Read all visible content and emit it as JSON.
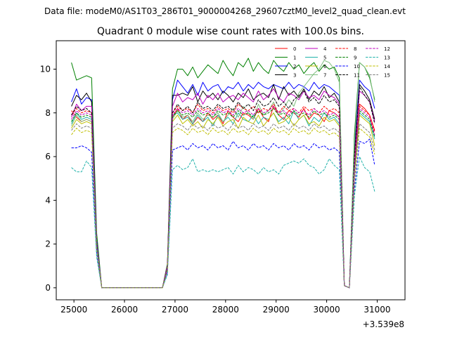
{
  "header": {
    "datafile": "Data file: modeM0/AS1T03_286T01_9000004268_29607cztM0_level2_quad_clean.evt"
  },
  "chart_data": {
    "type": "line",
    "title": "Quadrant 0 module wise count rates with 100.0s bins.",
    "xlabel": "",
    "ylabel": "",
    "x_offset_label": "+3.539e8",
    "x_offset": 353900000,
    "xlim": [
      24650,
      31550
    ],
    "ylim": [
      -0.55,
      11.3
    ],
    "xticks": [
      25000,
      26000,
      27000,
      28000,
      29000,
      30000,
      31000
    ],
    "xtick_labels": [
      "25000",
      "26000",
      "27000",
      "28000",
      "29000",
      "30000",
      "31000"
    ],
    "yticks": [
      0,
      2,
      4,
      6,
      8,
      10
    ],
    "ytick_labels": [
      "0",
      "2",
      "4",
      "6",
      "8",
      "10"
    ],
    "legend_position": "top-right",
    "legend_columns": 4,
    "bin_width": 100,
    "x_start": 24950,
    "series": [
      {
        "name": "0",
        "color": "#ff0000",
        "dash": false,
        "values": [
          8.1,
          7.8,
          7.6,
          7.7,
          7.6,
          2.0,
          0.0,
          0.0,
          0.0,
          0.0,
          0.0,
          0.0,
          0.0,
          0.0,
          0.0,
          0.0,
          0.0,
          0.0,
          0.0,
          0.9,
          7.8,
          8.2,
          7.7,
          7.9,
          7.5,
          7.8,
          7.6,
          8.0,
          7.7,
          7.9,
          7.5,
          8.1,
          7.8,
          7.6,
          8.0,
          7.9,
          7.7,
          8.2,
          7.8,
          7.6,
          8.3,
          7.9,
          7.7,
          8.1,
          8.0,
          7.8,
          8.2,
          7.7,
          8.0,
          7.9,
          7.6,
          8.1,
          8.0,
          7.8,
          0.1,
          0.0,
          5.5,
          8.4,
          8.2,
          7.9,
          7.2
        ]
      },
      {
        "name": "1",
        "color": "#008000",
        "dash": false,
        "values": [
          10.3,
          9.5,
          9.6,
          9.7,
          9.6,
          2.5,
          0.0,
          0.0,
          0.0,
          0.0,
          0.0,
          0.0,
          0.0,
          0.0,
          0.0,
          0.0,
          0.0,
          0.0,
          0.0,
          1.1,
          9.1,
          10.0,
          10.0,
          9.7,
          10.1,
          9.6,
          9.9,
          10.2,
          10.0,
          9.8,
          10.4,
          10.0,
          9.7,
          10.3,
          10.1,
          10.5,
          9.9,
          10.3,
          10.0,
          9.8,
          10.4,
          10.1,
          9.9,
          10.3,
          10.0,
          10.2,
          9.8,
          10.1,
          10.3,
          9.9,
          10.2,
          10.0,
          10.1,
          9.6,
          0.1,
          0.0,
          7.0,
          10.3,
          10.1,
          9.6,
          8.6
        ]
      },
      {
        "name": "2",
        "color": "#0000ff",
        "dash": false,
        "values": [
          8.5,
          9.1,
          8.4,
          8.7,
          8.6,
          2.2,
          0.0,
          0.0,
          0.0,
          0.0,
          0.0,
          0.0,
          0.0,
          0.0,
          0.0,
          0.0,
          0.0,
          0.0,
          0.0,
          1.0,
          8.6,
          9.5,
          9.2,
          8.9,
          9.3,
          8.8,
          9.4,
          9.0,
          9.2,
          9.3,
          8.9,
          9.2,
          9.1,
          9.4,
          9.0,
          9.3,
          9.1,
          9.4,
          9.2,
          9.1,
          9.3,
          9.2,
          9.1,
          9.4,
          9.1,
          9.3,
          9.2,
          9.0,
          9.4,
          9.1,
          9.3,
          9.2,
          9.0,
          8.8,
          0.1,
          0.0,
          6.3,
          9.5,
          9.2,
          9.0,
          8.2
        ]
      },
      {
        "name": "3",
        "color": "#000000",
        "dash": false,
        "values": [
          8.3,
          8.8,
          8.6,
          8.9,
          8.5,
          2.1,
          0.0,
          0.0,
          0.0,
          0.0,
          0.0,
          0.0,
          0.0,
          0.0,
          0.0,
          0.0,
          0.0,
          0.0,
          0.0,
          1.0,
          8.8,
          8.8,
          8.9,
          8.8,
          9.2,
          8.5,
          9.0,
          8.7,
          8.9,
          8.6,
          9.0,
          8.8,
          8.5,
          8.9,
          8.7,
          9.1,
          8.6,
          8.8,
          8.9,
          8.7,
          9.3,
          8.6,
          9.2,
          8.8,
          9.0,
          8.7,
          9.1,
          8.6,
          9.0,
          8.8,
          9.2,
          8.7,
          8.9,
          8.5,
          0.1,
          0.0,
          6.0,
          9.3,
          9.0,
          8.6,
          7.7
        ]
      },
      {
        "name": "4",
        "color": "#bf00bf",
        "dash": false,
        "values": [
          7.8,
          8.4,
          8.1,
          8.3,
          8.3,
          2.1,
          0.0,
          0.0,
          0.0,
          0.0,
          0.0,
          0.0,
          0.0,
          0.0,
          0.0,
          0.0,
          0.0,
          0.0,
          0.0,
          1.0,
          8.3,
          8.9,
          8.5,
          8.7,
          8.6,
          8.9,
          8.4,
          8.8,
          8.6,
          8.9,
          8.5,
          8.7,
          8.8,
          8.6,
          8.9,
          8.7,
          8.5,
          9.0,
          8.6,
          8.8,
          9.1,
          8.7,
          8.5,
          8.9,
          8.8,
          8.6,
          9.0,
          8.7,
          8.8,
          8.6,
          9.0,
          8.8,
          8.7,
          8.4,
          0.1,
          0.0,
          5.8,
          9.0,
          8.8,
          8.5,
          7.6
        ]
      },
      {
        "name": "5",
        "color": "#20b2aa",
        "dash": false,
        "values": [
          7.5,
          8.0,
          7.7,
          7.8,
          7.7,
          2.0,
          0.0,
          0.0,
          0.0,
          0.0,
          0.0,
          0.0,
          0.0,
          0.0,
          0.0,
          0.0,
          0.0,
          0.0,
          0.0,
          0.9,
          7.9,
          8.0,
          7.7,
          7.8,
          7.5,
          7.9,
          7.6,
          7.8,
          7.4,
          7.9,
          7.6,
          7.8,
          7.5,
          8.0,
          7.7,
          7.6,
          7.9,
          7.5,
          7.8,
          7.7,
          8.0,
          7.6,
          7.8,
          7.5,
          8.1,
          7.7,
          7.9,
          7.4,
          7.8,
          7.6,
          8.0,
          7.7,
          7.8,
          7.5,
          0.1,
          0.0,
          5.4,
          8.0,
          7.8,
          7.6,
          6.8
        ]
      },
      {
        "name": "6",
        "color": "#bfbf00",
        "dash": false,
        "values": [
          7.3,
          7.7,
          7.5,
          7.6,
          7.5,
          1.9,
          0.0,
          0.0,
          0.0,
          0.0,
          0.0,
          0.0,
          0.0,
          0.0,
          0.0,
          0.0,
          0.0,
          0.0,
          0.0,
          0.9,
          7.6,
          7.9,
          7.5,
          7.7,
          7.4,
          7.6,
          7.3,
          7.7,
          7.5,
          7.8,
          7.4,
          7.6,
          7.7,
          7.3,
          7.8,
          7.6,
          7.5,
          7.9,
          7.4,
          7.7,
          8.0,
          7.5,
          7.6,
          7.8,
          7.4,
          7.7,
          7.9,
          7.5,
          7.6,
          7.4,
          7.8,
          7.6,
          7.7,
          7.4,
          0.1,
          0.0,
          5.2,
          7.9,
          7.7,
          7.5,
          6.5
        ]
      },
      {
        "name": "7",
        "color": "#7fbf7f",
        "dash": false,
        "values": [
          7.4,
          7.9,
          7.6,
          7.7,
          7.6,
          2.0,
          0.0,
          0.0,
          0.0,
          0.0,
          0.0,
          0.0,
          0.0,
          0.0,
          0.0,
          0.0,
          0.0,
          0.0,
          0.0,
          0.9,
          7.7,
          8.1,
          7.8,
          7.9,
          7.6,
          8.0,
          7.7,
          7.9,
          7.8,
          8.0,
          7.6,
          7.9,
          8.2,
          7.8,
          8.3,
          8.0,
          7.7,
          8.4,
          7.9,
          8.1,
          8.5,
          7.9,
          8.2,
          8.6,
          8.3,
          8.9,
          9.2,
          9.5,
          9.8,
          10.0,
          10.4,
          10.3,
          10.0,
          9.4,
          0.1,
          0.0,
          6.6,
          10.3,
          10.1,
          9.7,
          8.5
        ]
      },
      {
        "name": "8",
        "color": "#ff0000",
        "dash": true,
        "values": [
          7.9,
          8.2,
          8.0,
          8.1,
          8.0,
          2.0,
          0.0,
          0.0,
          0.0,
          0.0,
          0.0,
          0.0,
          0.0,
          0.0,
          0.0,
          0.0,
          0.0,
          0.0,
          0.0,
          0.9,
          8.0,
          8.3,
          8.1,
          8.2,
          8.0,
          8.4,
          8.1,
          8.2,
          8.0,
          8.3,
          8.1,
          8.2,
          8.0,
          8.4,
          8.2,
          8.1,
          8.3,
          8.0,
          8.2,
          8.1,
          8.4,
          8.0,
          8.3,
          8.1,
          8.2,
          8.0,
          8.3,
          8.1,
          8.2,
          8.0,
          8.3,
          8.1,
          8.2,
          8.0,
          0.1,
          0.0,
          5.6,
          8.3,
          8.1,
          7.9,
          7.1
        ]
      },
      {
        "name": "9",
        "color": "#008000",
        "dash": true,
        "values": [
          7.6,
          8.0,
          7.8,
          7.9,
          7.8,
          2.0,
          0.0,
          0.0,
          0.0,
          0.0,
          0.0,
          0.0,
          0.0,
          0.0,
          0.0,
          0.0,
          0.0,
          0.0,
          0.0,
          0.9,
          7.8,
          8.1,
          7.9,
          8.0,
          7.8,
          8.1,
          7.9,
          8.0,
          7.8,
          8.1,
          7.9,
          8.0,
          7.8,
          8.1,
          7.9,
          8.0,
          7.8,
          8.1,
          7.9,
          8.0,
          8.2,
          7.9,
          8.0,
          7.8,
          8.1,
          7.9,
          8.0,
          7.8,
          8.1,
          7.9,
          8.0,
          7.8,
          7.9,
          7.7,
          0.1,
          0.0,
          5.4,
          8.1,
          7.9,
          7.7,
          6.9
        ]
      },
      {
        "name": "10",
        "color": "#0000ff",
        "dash": true,
        "values": [
          6.4,
          6.4,
          6.5,
          6.4,
          6.2,
          1.6,
          0.0,
          0.0,
          0.0,
          0.0,
          0.0,
          0.0,
          0.0,
          0.0,
          0.0,
          0.0,
          0.0,
          0.0,
          0.0,
          0.7,
          6.3,
          6.4,
          6.5,
          6.3,
          6.6,
          6.4,
          6.5,
          6.3,
          6.6,
          6.4,
          6.5,
          6.3,
          6.7,
          6.4,
          6.5,
          6.3,
          6.6,
          6.4,
          6.5,
          6.3,
          6.6,
          6.4,
          6.5,
          6.3,
          6.6,
          6.4,
          6.5,
          6.3,
          6.6,
          6.4,
          6.5,
          6.3,
          6.4,
          6.2,
          0.1,
          0.0,
          4.5,
          6.7,
          6.6,
          6.8,
          5.6
        ]
      },
      {
        "name": "11",
        "color": "#000000",
        "dash": true,
        "values": [
          7.9,
          8.3,
          8.1,
          8.2,
          8.0,
          2.0,
          0.0,
          0.0,
          0.0,
          0.0,
          0.0,
          0.0,
          0.0,
          0.0,
          0.0,
          0.0,
          0.0,
          0.0,
          0.0,
          0.9,
          8.0,
          8.4,
          8.1,
          8.3,
          8.0,
          8.5,
          8.2,
          8.3,
          8.1,
          8.4,
          8.2,
          8.3,
          8.1,
          8.5,
          8.2,
          8.4,
          8.1,
          8.6,
          8.3,
          8.4,
          8.7,
          8.3,
          8.5,
          8.2,
          8.6,
          8.8,
          9.0,
          8.5,
          8.7,
          8.4,
          8.8,
          8.5,
          8.6,
          8.3,
          0.1,
          0.0,
          6.0,
          9.2,
          8.8,
          8.5,
          7.5
        ]
      },
      {
        "name": "12",
        "color": "#bf00bf",
        "dash": true,
        "values": [
          7.7,
          8.1,
          7.9,
          8.0,
          7.9,
          2.0,
          0.0,
          0.0,
          0.0,
          0.0,
          0.0,
          0.0,
          0.0,
          0.0,
          0.0,
          0.0,
          0.0,
          0.0,
          0.0,
          0.9,
          7.9,
          8.2,
          8.0,
          8.1,
          7.9,
          8.2,
          8.0,
          8.1,
          7.9,
          8.2,
          8.0,
          8.1,
          7.9,
          8.2,
          8.0,
          8.1,
          7.9,
          8.2,
          8.0,
          8.1,
          8.3,
          8.0,
          8.1,
          7.9,
          8.2,
          8.0,
          8.1,
          7.9,
          8.2,
          8.0,
          8.1,
          7.9,
          8.0,
          7.8,
          0.1,
          0.0,
          5.5,
          8.2,
          8.0,
          7.8,
          7.0
        ]
      },
      {
        "name": "13",
        "color": "#20b2aa",
        "dash": true,
        "values": [
          5.5,
          5.3,
          5.3,
          5.8,
          5.5,
          1.4,
          0.0,
          0.0,
          0.0,
          0.0,
          0.0,
          0.0,
          0.0,
          0.0,
          0.0,
          0.0,
          0.0,
          0.0,
          0.0,
          0.6,
          5.4,
          5.6,
          5.4,
          5.5,
          5.9,
          5.3,
          5.4,
          5.3,
          5.4,
          5.3,
          5.4,
          5.5,
          5.2,
          5.6,
          5.3,
          5.5,
          5.4,
          5.2,
          5.5,
          5.3,
          5.4,
          5.2,
          5.6,
          5.7,
          5.8,
          5.7,
          5.9,
          5.6,
          5.5,
          5.2,
          5.4,
          5.9,
          5.6,
          5.4,
          0.1,
          0.0,
          4.2,
          6.0,
          5.5,
          5.3,
          4.4
        ]
      },
      {
        "name": "14",
        "color": "#bfbf00",
        "dash": true,
        "values": [
          7.0,
          7.3,
          7.1,
          7.2,
          7.1,
          1.8,
          0.0,
          0.0,
          0.0,
          0.0,
          0.0,
          0.0,
          0.0,
          0.0,
          0.0,
          0.0,
          0.0,
          0.0,
          0.0,
          0.8,
          7.1,
          7.3,
          7.2,
          7.0,
          7.3,
          7.1,
          7.2,
          7.0,
          7.3,
          7.1,
          7.2,
          7.0,
          7.3,
          7.1,
          7.2,
          7.0,
          7.3,
          7.1,
          7.2,
          7.0,
          7.3,
          7.1,
          7.2,
          7.0,
          7.3,
          7.1,
          7.2,
          7.0,
          7.3,
          7.1,
          7.2,
          7.0,
          7.1,
          6.9,
          0.1,
          0.0,
          4.9,
          7.3,
          7.1,
          6.9,
          6.1
        ]
      },
      {
        "name": "15",
        "color": "#7f7f7f",
        "dash": true,
        "values": [
          7.2,
          7.5,
          7.3,
          7.4,
          7.3,
          1.9,
          0.0,
          0.0,
          0.0,
          0.0,
          0.0,
          0.0,
          0.0,
          0.0,
          0.0,
          0.0,
          0.0,
          0.0,
          0.0,
          0.8,
          7.3,
          7.5,
          7.4,
          7.2,
          7.5,
          7.3,
          7.4,
          7.2,
          7.5,
          7.3,
          7.4,
          7.2,
          7.5,
          7.3,
          7.4,
          7.2,
          7.5,
          7.3,
          7.4,
          7.2,
          7.5,
          7.3,
          7.4,
          7.2,
          7.5,
          7.3,
          7.4,
          7.2,
          7.5,
          7.3,
          7.4,
          7.2,
          7.3,
          7.1,
          0.1,
          0.0,
          5.1,
          7.5,
          7.3,
          7.1,
          6.3
        ]
      }
    ]
  }
}
